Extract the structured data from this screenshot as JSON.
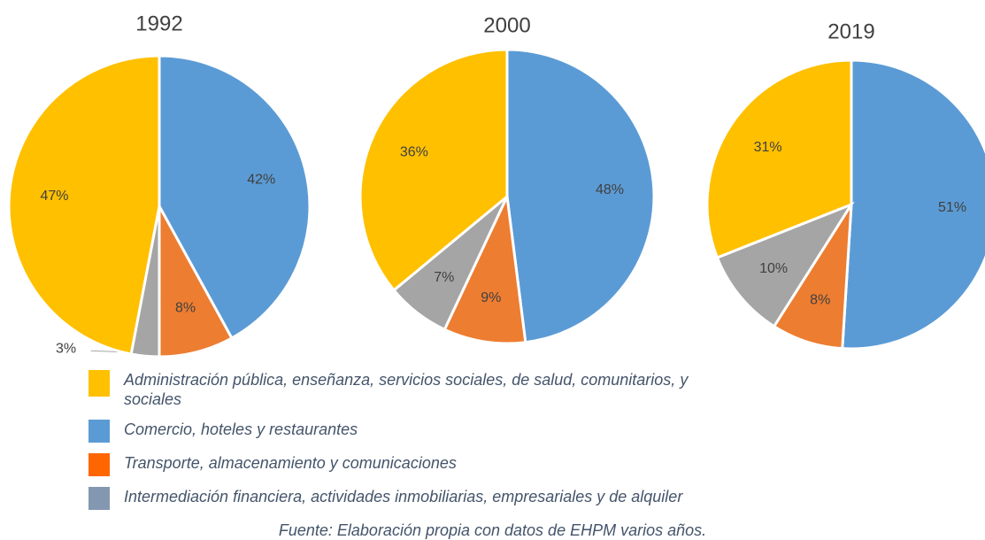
{
  "chart_data": [
    {
      "type": "pie",
      "title": "1992",
      "values": [
        42,
        8,
        3,
        47
      ],
      "value_labels": [
        "42%",
        "8%",
        "3%",
        "47%"
      ],
      "colors": [
        "#5B9BD5",
        "#ED7D31",
        "#A5A5A5",
        "#FFC000"
      ]
    },
    {
      "type": "pie",
      "title": "2000",
      "values": [
        48,
        9,
        7,
        36
      ],
      "value_labels": [
        "48%",
        "9%",
        "7%",
        "36%"
      ],
      "colors": [
        "#5B9BD5",
        "#ED7D31",
        "#A5A5A5",
        "#FFC000"
      ]
    },
    {
      "type": "pie",
      "title": "2019",
      "values": [
        51,
        8,
        10,
        31
      ],
      "value_labels": [
        "51%",
        "8%",
        "10%",
        "31%"
      ],
      "colors": [
        "#5B9BD5",
        "#ED7D31",
        "#A5A5A5",
        "#FFC000"
      ]
    }
  ],
  "legend": {
    "labels": [
      "Administración pública, enseñanza, servicios sociales, de salud, comunitarios, y sociales",
      "Comercio, hoteles y restaurantes",
      "Transporte, almacenamiento y comunicaciones",
      "Intermediación financiera, actividades inmobiliarias, empresariales y de alquiler"
    ],
    "colors": [
      "#FFC000",
      "#5B9BD5",
      "#FF6600",
      "#8497B0"
    ]
  },
  "source": "Fuente: Elaboración propia con datos de EHPM varios años."
}
